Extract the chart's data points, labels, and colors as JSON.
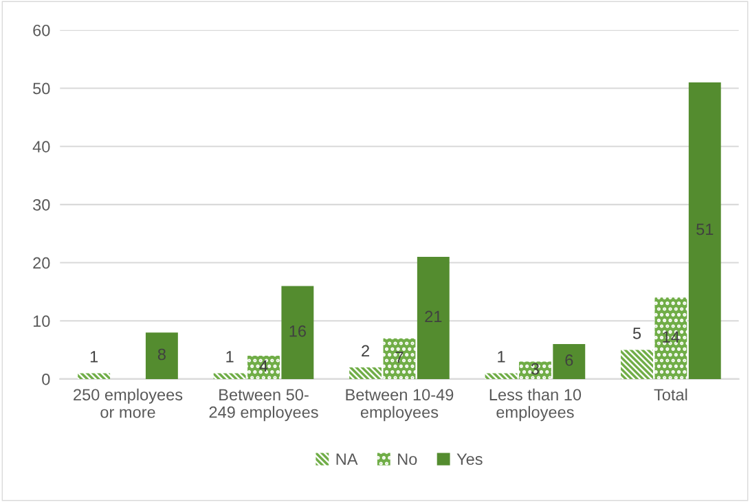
{
  "chart_data": {
    "type": "bar",
    "categories": [
      "250 employees\nor more",
      "Between 50-\n249 employees",
      "Between 10-49\nemployees",
      "Less than 10\nemployees",
      "Total"
    ],
    "series": [
      {
        "name": "NA",
        "color": "#70ad47",
        "values": [
          1,
          1,
          2,
          1,
          5
        ]
      },
      {
        "name": "No",
        "color": "#70ad47",
        "values": [
          null,
          4,
          7,
          3,
          14
        ]
      },
      {
        "name": "Yes",
        "color": "#548c2f",
        "values": [
          8,
          16,
          21,
          6,
          51
        ]
      }
    ],
    "ylim": [
      0,
      60
    ],
    "yticks": [
      0,
      10,
      20,
      30,
      40,
      50,
      60
    ],
    "grid": "y",
    "legend": "bottom",
    "data_labels": true
  }
}
